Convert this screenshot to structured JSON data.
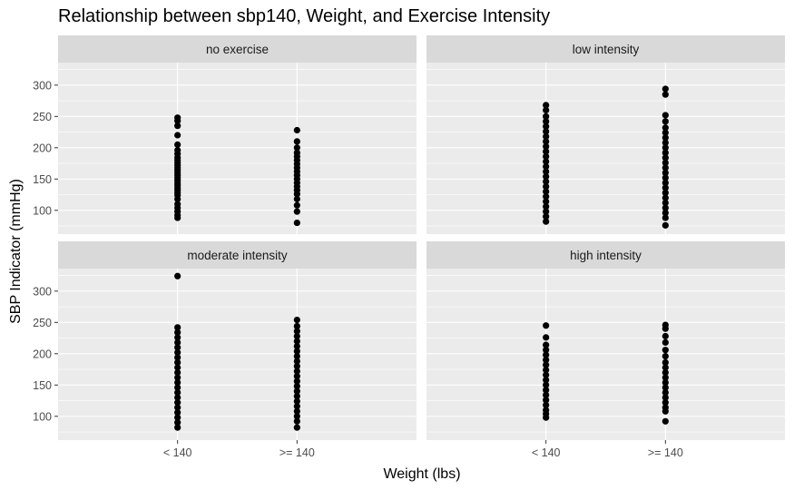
{
  "chart_data": {
    "type": "scatter",
    "title": "Relationship between sbp140, Weight, and Exercise Intensity",
    "xlabel": "Weight (lbs)",
    "ylabel": "SBP Indicator (mmHg)",
    "categories": [
      "< 140",
      ">= 140"
    ],
    "yticks": [
      100,
      150,
      200,
      250,
      300
    ],
    "ylim": [
      62,
      336
    ],
    "grid": true,
    "facets": [
      {
        "label": "no exercise",
        "points": [
          {
            "x": "< 140",
            "y": [
              88,
              92,
              98,
              104,
              110,
              118,
              124,
              128,
              132,
              136,
              140,
              144,
              148,
              152,
              156,
              160,
              164,
              168,
              172,
              176,
              180,
              184,
              190,
              196,
              205,
              220,
              235,
              243,
              248
            ]
          },
          {
            "x": ">= 140",
            "y": [
              80,
              98,
              108,
              118,
              126,
              132,
              138,
              144,
              150,
              156,
              162,
              168,
              174,
              180,
              186,
              192,
              200,
              210,
              228
            ]
          }
        ]
      },
      {
        "label": "low intensity",
        "points": [
          {
            "x": "< 140",
            "y": [
              82,
              90,
              98,
              106,
              114,
              122,
              130,
              138,
              146,
              154,
              162,
              170,
              178,
              186,
              194,
              202,
              210,
              218,
              226,
              234,
              242,
              250,
              260,
              268
            ]
          },
          {
            "x": ">= 140",
            "y": [
              76,
              88,
              96,
              104,
              112,
              120,
              128,
              136,
              144,
              152,
              160,
              168,
              176,
              184,
              192,
              200,
              208,
              216,
              224,
              232,
              242,
              252,
              285,
              294
            ]
          }
        ]
      },
      {
        "label": "moderate intensity",
        "points": [
          {
            "x": "< 140",
            "y": [
              82,
              90,
              98,
              106,
              114,
              122,
              130,
              138,
              146,
              154,
              162,
              170,
              178,
              186,
              194,
              202,
              210,
              218,
              226,
              234,
              242,
              324
            ]
          },
          {
            "x": ">= 140",
            "y": [
              82,
              92,
              100,
              108,
              116,
              124,
              132,
              140,
              148,
              156,
              164,
              172,
              180,
              188,
              196,
              204,
              212,
              220,
              228,
              236,
              244,
              254
            ]
          }
        ]
      },
      {
        "label": "high intensity",
        "points": [
          {
            "x": "< 140",
            "y": [
              98,
              104,
              110,
              118,
              126,
              134,
              142,
              150,
              158,
              166,
              174,
              182,
              190,
              198,
              206,
              214,
              226,
              245
            ]
          },
          {
            "x": ">= 140",
            "y": [
              92,
              108,
              114,
              122,
              130,
              138,
              146,
              154,
              162,
              170,
              178,
              186,
              196,
              206,
              218,
              228,
              240,
              246
            ]
          }
        ]
      }
    ]
  }
}
